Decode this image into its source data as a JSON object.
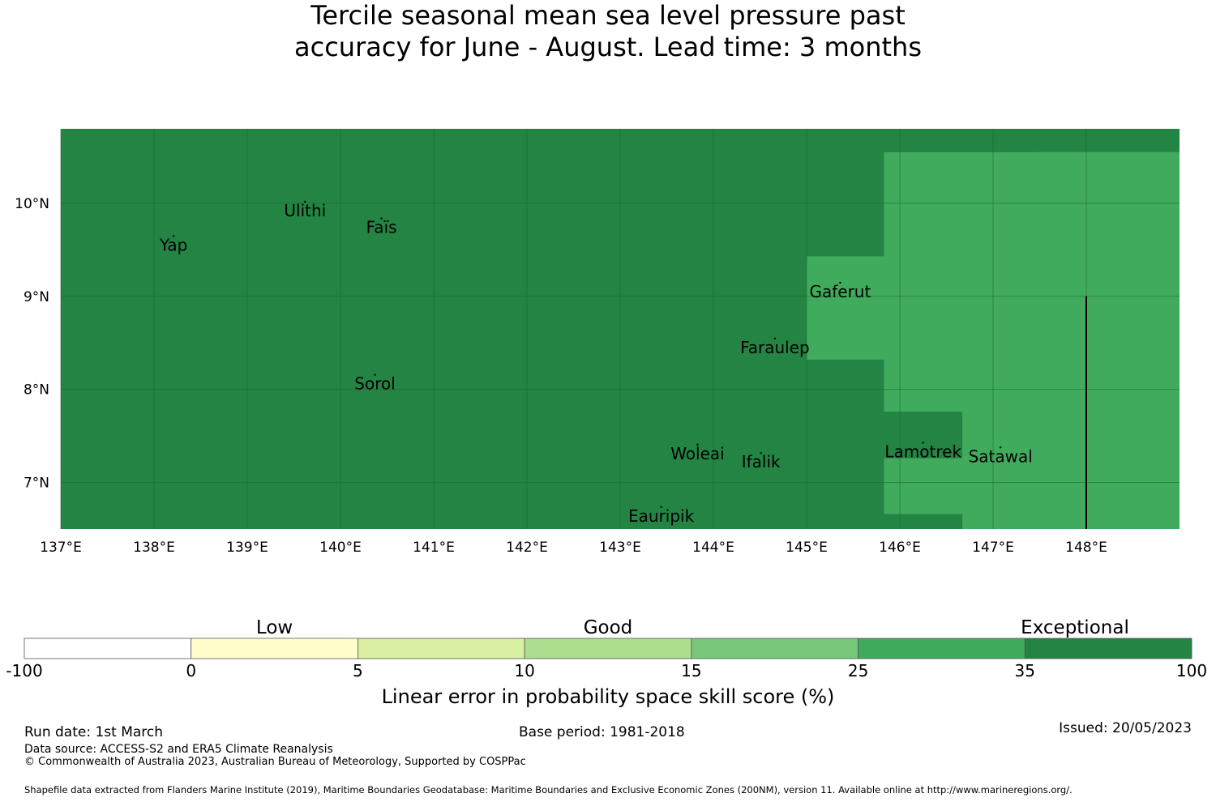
{
  "title": {
    "line1": "Tercile seasonal mean sea level pressure past",
    "line2": "accuracy for June - August. Lead time: 3 months"
  },
  "map": {
    "lon_range": [
      137.0,
      149.0
    ],
    "lat_range": [
      6.5,
      10.8
    ],
    "lon_ticks": [
      137,
      138,
      139,
      140,
      141,
      142,
      143,
      144,
      145,
      146,
      147,
      148
    ],
    "lon_tick_labels": [
      "137°E",
      "138°E",
      "139°E",
      "140°E",
      "141°E",
      "142°E",
      "143°E",
      "144°E",
      "145°E",
      "146°E",
      "147°E",
      "148°E"
    ],
    "lat_ticks": [
      7,
      8,
      9,
      10
    ],
    "lat_tick_labels": [
      "7°N",
      "8°N",
      "9°N",
      "10°N"
    ],
    "colors": {
      "exceptional_35_100": "#238443",
      "range_25_35": "#41ab5d",
      "gridline": "#1a6b35",
      "boundary": "#000000"
    },
    "skill_regions": [
      {
        "category": "35-100",
        "lon": [
          137.0,
          149.0
        ],
        "lat": [
          6.5,
          10.8
        ]
      },
      {
        "category": "25-35",
        "lon": [
          145.83,
          149.0
        ],
        "lat": [
          6.5,
          10.55
        ]
      },
      {
        "category": "35-100",
        "lon": [
          145.83,
          147.5
        ],
        "lat": [
          10.55,
          10.8
        ]
      },
      {
        "category": "25-35",
        "lon": [
          145.0,
          145.83
        ],
        "lat": [
          8.32,
          9.43
        ]
      },
      {
        "category": "35-100",
        "lon": [
          145.83,
          146.67
        ],
        "lat": [
          6.5,
          6.66
        ]
      },
      {
        "category": "35-100",
        "lon": [
          145.83,
          146.67
        ],
        "lat": [
          7.26,
          7.76
        ]
      }
    ],
    "boundary_line": {
      "lon": 148.0,
      "lat": [
        6.5,
        9.0
      ]
    },
    "places": [
      {
        "name": "Yap",
        "lon": 138.21,
        "lat": 9.49
      },
      {
        "name": "Ulithi",
        "lon": 139.62,
        "lat": 9.86
      },
      {
        "name": "Faïs",
        "lon": 140.44,
        "lat": 9.68
      },
      {
        "name": "Gaferut",
        "lon": 145.36,
        "lat": 8.99
      },
      {
        "name": "Faraulep",
        "lon": 144.66,
        "lat": 8.39
      },
      {
        "name": "Sorol",
        "lon": 140.37,
        "lat": 8.0
      },
      {
        "name": "Woleai",
        "lon": 143.83,
        "lat": 7.25
      },
      {
        "name": "Ifalik",
        "lon": 144.51,
        "lat": 7.16
      },
      {
        "name": "Lamotrek",
        "lon": 146.25,
        "lat": 7.27
      },
      {
        "name": "Satawal",
        "lon": 147.08,
        "lat": 7.22
      },
      {
        "name": "Eauripik",
        "lon": 143.44,
        "lat": 6.58
      }
    ]
  },
  "colorbar": {
    "boundaries": [
      "-100",
      "0",
      "5",
      "10",
      "15",
      "25",
      "35",
      "100"
    ],
    "colors": [
      "#ffffff",
      "#ffffcc",
      "#d9f0a3",
      "#addd8e",
      "#78c679",
      "#41ab5d",
      "#238443"
    ],
    "categories": [
      {
        "label": "Low",
        "position": "over 0 to 5"
      },
      {
        "label": "Good",
        "position": "over 10"
      },
      {
        "label": "Exceptional",
        "position": "over 35 to 100"
      }
    ],
    "xlabel": "Linear error in probability space skill score (%)"
  },
  "footer": {
    "run_date": "Run date: 1st March",
    "base_period": "Base period: 1981-2018",
    "issued": "Issued: 20/05/2023",
    "data_source": "Data source: ACCESS-S2 and ERA5 Climate Reanalysis",
    "copyright": "© Commonwealth of Australia 2023, Australian Bureau of Meteorology, Supported by COSPPac",
    "shapefile": "Shapefile data extracted from Flanders Marine Institute (2019), Maritime Boundaries Geodatabase: Maritime Boundaries and Exclusive Economic Zones (200NM), version 11. Available online at http://www.marineregions.org/."
  }
}
